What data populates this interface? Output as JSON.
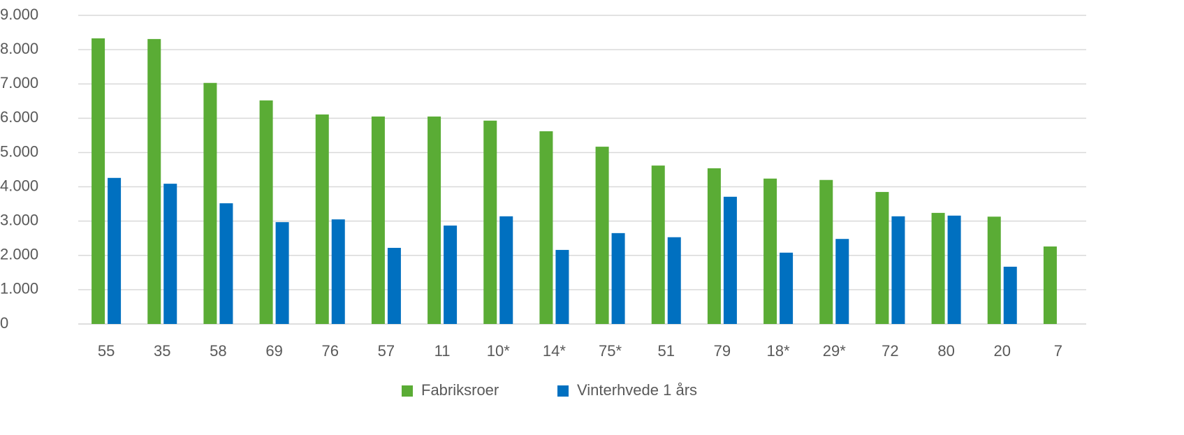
{
  "chart_data": {
    "type": "bar",
    "categories": [
      "55",
      "35",
      "58",
      "69",
      "76",
      "57",
      "11",
      "10*",
      "14*",
      "75*",
      "51",
      "79",
      "18*",
      "29*",
      "72",
      "80",
      "20",
      "7"
    ],
    "series": [
      {
        "name": "Fabriksroer",
        "color": "#5aac35",
        "values": [
          8330,
          8310,
          7030,
          6520,
          6110,
          6050,
          6050,
          5930,
          5620,
          5170,
          4620,
          4540,
          4240,
          4200,
          3850,
          3240,
          3130,
          2260
        ]
      },
      {
        "name": "Vinterhvede 1 års",
        "color": "#0070c0",
        "values": [
          4260,
          4090,
          3520,
          2970,
          3050,
          2220,
          2870,
          3140,
          2160,
          2650,
          2530,
          3710,
          2080,
          2480,
          3140,
          3160,
          1670,
          null
        ]
      }
    ],
    "ylim": [
      0,
      9000
    ],
    "yticks": [
      0,
      {
        "value": 1000,
        "label": "1.000"
      },
      {
        "value": 2000,
        "label": "2.000"
      },
      {
        "value": 3000,
        "label": "3.000"
      },
      {
        "value": 4000,
        "label": "4.000"
      },
      {
        "value": 5000,
        "label": "5.000"
      },
      {
        "value": 6000,
        "label": "6.000"
      },
      {
        "value": 7000,
        "label": "7.000"
      },
      {
        "value": 8000,
        "label": "8.000"
      },
      {
        "value": 9000,
        "label": "9.000"
      }
    ],
    "grid": true,
    "legend": "bottom"
  }
}
